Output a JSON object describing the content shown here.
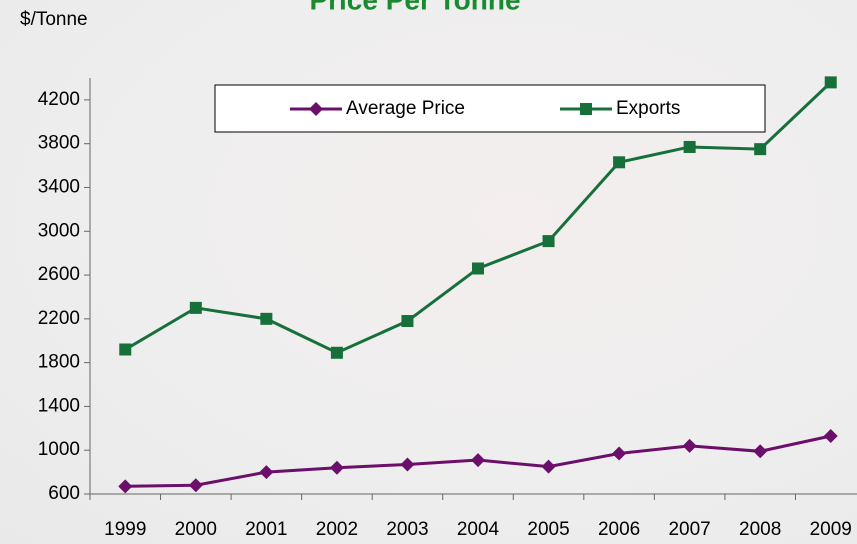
{
  "chart_data": {
    "type": "line",
    "title": "Price Per Tonne",
    "y_label": "$/Tonne",
    "categories": [
      "1999",
      "2000",
      "2001",
      "2002",
      "2003",
      "2004",
      "2005",
      "2006",
      "2007",
      "2008",
      "2009"
    ],
    "series": [
      {
        "name": "Average Price",
        "color": "#6b0f6b",
        "marker": "diamond",
        "values": [
          670,
          680,
          800,
          840,
          870,
          910,
          850,
          970,
          1040,
          990,
          1130
        ]
      },
      {
        "name": "Exports",
        "color": "#17703a",
        "marker": "square",
        "values": [
          1920,
          2300,
          2200,
          1890,
          2180,
          2660,
          2910,
          3630,
          3770,
          3750,
          4360
        ]
      }
    ],
    "ylim": [
      600,
      4400
    ],
    "yticks": [
      600,
      1000,
      1400,
      1800,
      2200,
      2600,
      3000,
      3400,
      3800,
      4200
    ],
    "legend": "top"
  }
}
